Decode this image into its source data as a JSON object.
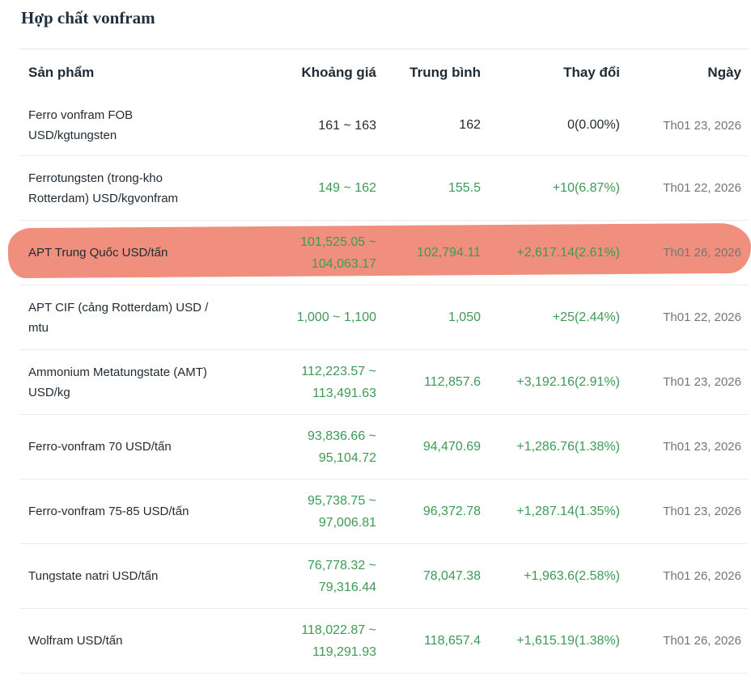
{
  "title": "Hợp chất vonfram",
  "headers": {
    "product": "Sản phẩm",
    "range": "Khoảng giá",
    "average": "Trung bình",
    "change": "Thay đổi",
    "date": "Ngày"
  },
  "rows": [
    {
      "name_line1": "Ferro vonfram FOB",
      "name_line2": "USD/kgtungsten",
      "range_line1": "161 ~ 163",
      "range_line2": "",
      "average": "162",
      "change": "0(0.00%)",
      "date": "Th01 23, 2026",
      "color": "#1f2a33",
      "highlighted": false
    },
    {
      "name_line1": "Ferrotungsten (trong-kho",
      "name_line2": "Rotterdam) USD/kgvonfram",
      "range_line1": "149 ~ 162",
      "range_line2": "",
      "average": "155.5",
      "change": "+10(6.87%)",
      "date": "Th01 22, 2026",
      "color": "#3d9a55",
      "highlighted": false
    },
    {
      "name_line1": "APT Trung Quốc USD/tấn",
      "name_line2": "",
      "range_line1": "101,525.05 ~",
      "range_line2": "104,063.17",
      "average": "102,794.11",
      "change": "+2,617.14(2.61%)",
      "date": "Th01 26, 2026",
      "color": "#3d9a55",
      "highlighted": true
    },
    {
      "name_line1": "APT CIF (cảng Rotterdam) USD /",
      "name_line2": "mtu",
      "range_line1": "1,000 ~ 1,100",
      "range_line2": "",
      "average": "1,050",
      "change": "+25(2.44%)",
      "date": "Th01 22, 2026",
      "color": "#3d9a55",
      "highlighted": false
    },
    {
      "name_line1": "Ammonium Metatungstate (AMT)",
      "name_line2": "USD/kg",
      "range_line1": "112,223.57 ~",
      "range_line2": "113,491.63",
      "average": "112,857.6",
      "change": "+3,192.16(2.91%)",
      "date": "Th01 23, 2026",
      "color": "#3d9a55",
      "highlighted": false
    },
    {
      "name_line1": "Ferro-vonfram 70 USD/tấn",
      "name_line2": "",
      "range_line1": "93,836.66 ~",
      "range_line2": "95,104.72",
      "average": "94,470.69",
      "change": "+1,286.76(1.38%)",
      "date": "Th01 23, 2026",
      "color": "#3d9a55",
      "highlighted": false
    },
    {
      "name_line1": "Ferro-vonfram 75-85 USD/tấn",
      "name_line2": "",
      "range_line1": "95,738.75 ~",
      "range_line2": "97,006.81",
      "average": "96,372.78",
      "change": "+1,287.14(1.35%)",
      "date": "Th01 23, 2026",
      "color": "#3d9a55",
      "highlighted": false
    },
    {
      "name_line1": "Tungstate natri USD/tấn",
      "name_line2": "",
      "range_line1": "76,778.32 ~",
      "range_line2": "79,316.44",
      "average": "78,047.38",
      "change": "+1,963.6(2.58%)",
      "date": "Th01 26, 2026",
      "color": "#3d9a55",
      "highlighted": false
    },
    {
      "name_line1": "Wolfram USD/tấn",
      "name_line2": "",
      "range_line1": "118,022.87 ~",
      "range_line2": "119,291.93",
      "average": "118,657.4",
      "change": "+1,615.19(1.38%)",
      "date": "Th01 26, 2026",
      "color": "#3d9a55",
      "highlighted": false
    }
  ]
}
